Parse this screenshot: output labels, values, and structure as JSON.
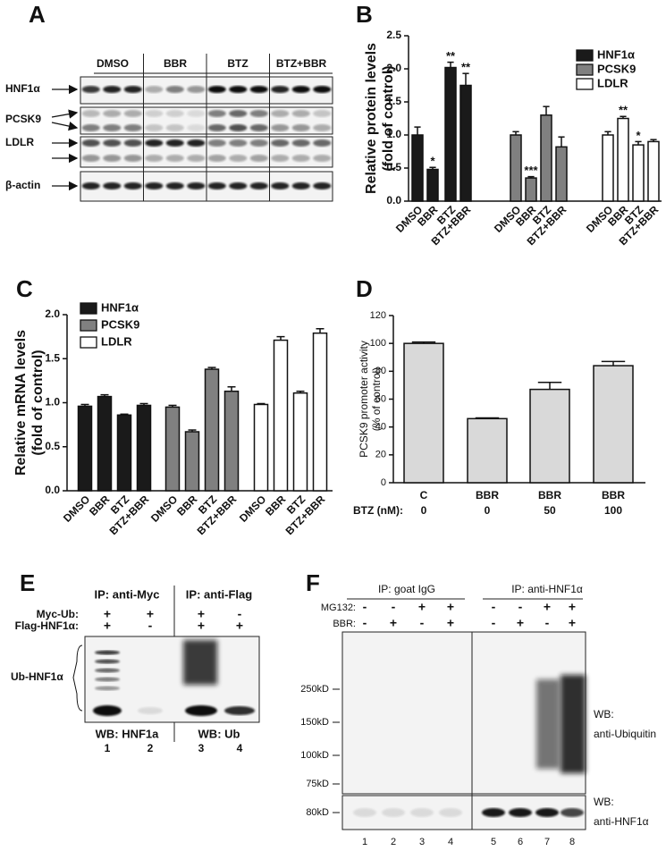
{
  "panel_labels": [
    "A",
    "B",
    "C",
    "D",
    "E",
    "F"
  ],
  "panel_a": {
    "columns": [
      "DMSO",
      "BBR",
      "BTZ",
      "BTZ+BBR"
    ],
    "rows": [
      "HNF1α",
      "PCSK9",
      "LDLR",
      "β-actin"
    ]
  },
  "chart_data": [
    {
      "type": "bar",
      "ylabel": [
        "Relative protein levels",
        "(fold of control)"
      ],
      "categories": [
        "DMSO",
        "BBR",
        "BTZ",
        "BTZ+BBR"
      ],
      "series": [
        {
          "name": "HNF1α",
          "color": "#1a1a1a",
          "values": [
            1.0,
            0.48,
            2.02,
            1.75
          ],
          "errors": [
            0.12,
            0.03,
            0.08,
            0.18
          ],
          "annotations": [
            null,
            "*",
            "**",
            "**"
          ]
        },
        {
          "name": "PCSK9",
          "color": "#808080",
          "values": [
            1.0,
            0.35,
            1.3,
            0.82
          ],
          "errors": [
            0.05,
            0.02,
            0.13,
            0.15
          ],
          "annotations": [
            null,
            "***",
            null,
            null
          ]
        },
        {
          "name": "LDLR",
          "color": "#ffffff",
          "values": [
            1.0,
            1.25,
            0.85,
            0.9
          ],
          "errors": [
            0.05,
            0.03,
            0.05,
            0.03
          ],
          "annotations": [
            null,
            "**",
            "*",
            null
          ]
        }
      ],
      "ylim": [
        0,
        2.5
      ],
      "yticks": [
        {
          "value": 0,
          "label": "0.0"
        },
        0.5,
        {
          "value": 1,
          "label": "1.0"
        },
        1.5,
        {
          "value": 2,
          "label": "2.0"
        },
        2.5
      ]
    },
    {
      "type": "bar",
      "ylabel": [
        "Relative mRNA levels",
        "(fold of control)"
      ],
      "categories": [
        "DMSO",
        "BBR",
        "BTZ",
        "BTZ+BBR"
      ],
      "series": [
        {
          "name": "HNF1α",
          "color": "#1a1a1a",
          "values": [
            0.96,
            1.07,
            0.86,
            0.97
          ],
          "errors": [
            0.02,
            0.02,
            0.01,
            0.02
          ]
        },
        {
          "name": "PCSK9",
          "color": "#808080",
          "values": [
            0.95,
            0.67,
            1.38,
            1.13
          ],
          "errors": [
            0.02,
            0.02,
            0.02,
            0.05
          ]
        },
        {
          "name": "LDLR",
          "color": "#ffffff",
          "values": [
            0.98,
            1.71,
            1.11,
            1.79
          ],
          "errors": [
            0.01,
            0.04,
            0.02,
            0.05
          ]
        }
      ],
      "ylim": [
        0,
        2.0
      ],
      "yticks": [
        {
          "value": 0,
          "label": "0.0"
        },
        0.5,
        {
          "value": 1,
          "label": "1.0"
        },
        1.5,
        {
          "value": 2,
          "label": "2.0"
        }
      ]
    },
    {
      "type": "bar",
      "ylabel": [
        "PCSK9 promoter activity",
        "(% of control)"
      ],
      "categories": [
        "C",
        "BBR",
        "BBR",
        "BBR"
      ],
      "color": "#d9d9d9",
      "values": [
        100,
        46,
        67,
        84
      ],
      "errors": [
        1,
        0.5,
        5,
        3
      ],
      "btz_label": "BTZ (nM):",
      "btz_values": [
        0,
        0,
        50,
        100
      ],
      "ylim": [
        0,
        120
      ],
      "yticks": [
        0,
        20,
        40,
        60,
        80,
        100,
        120
      ]
    }
  ],
  "panel_e": {
    "ip_labels": [
      "IP: anti-Myc",
      "IP: anti-Flag"
    ],
    "conditions": [
      {
        "name": "Myc-Ub:",
        "values": [
          "+",
          "+",
          "+",
          "-"
        ]
      },
      {
        "name": "Flag-HNF1α:",
        "values": [
          "+",
          "-",
          "+",
          "+"
        ]
      }
    ],
    "band_label": "Ub-HNF1α",
    "wb_labels": [
      "WB: HNF1a",
      "WB: Ub"
    ],
    "lanes": [
      1,
      2,
      3,
      4
    ]
  },
  "panel_f": {
    "ip_labels": [
      "IP: goat IgG",
      "IP: anti-HNF1α"
    ],
    "conditions": [
      {
        "name": "MG132:",
        "values": [
          "-",
          "-",
          "+",
          "+",
          "-",
          "-",
          "+",
          "+"
        ]
      },
      {
        "name": "BBR:",
        "values": [
          "-",
          "+",
          "-",
          "+",
          "-",
          "+",
          "-",
          "+"
        ]
      }
    ],
    "markers": [
      "250kD",
      "150kD",
      "100kD",
      "75kD"
    ],
    "lower_marker": "80kD",
    "wb_labels": [
      [
        "WB:",
        "anti-Ubiquitin"
      ],
      [
        "WB:",
        "anti-HNF1α"
      ]
    ],
    "lanes": [
      1,
      2,
      3,
      4,
      5,
      6,
      7,
      8
    ]
  }
}
